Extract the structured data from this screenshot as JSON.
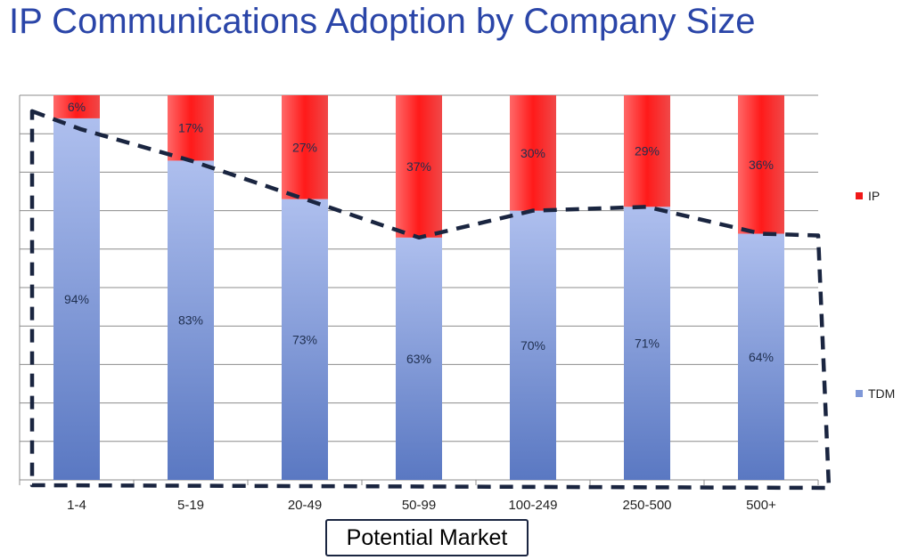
{
  "chart_data": {
    "type": "bar",
    "stacked": true,
    "percent_stacked": true,
    "title": "IP Communications Adoption by Company Size",
    "categories": [
      "1-4",
      "5-19",
      "20-49",
      "50-99",
      "100-249",
      "250-500",
      "500+"
    ],
    "series": [
      {
        "name": "TDM",
        "values": [
          94,
          83,
          73,
          63,
          70,
          71,
          64
        ],
        "labels": [
          "94%",
          "83%",
          "73%",
          "63%",
          "70%",
          "71%",
          "64%"
        ],
        "color": "#6a86cc"
      },
      {
        "name": "IP",
        "values": [
          6,
          17,
          27,
          37,
          30,
          29,
          36
        ],
        "labels": [
          "6%",
          "17%",
          "27%",
          "37%",
          "30%",
          "29%",
          "36%"
        ],
        "color": "#f01818"
      }
    ],
    "ylim": [
      0,
      100
    ],
    "grid": true,
    "legend": "right",
    "annotation": {
      "text": "Potential Market"
    }
  }
}
